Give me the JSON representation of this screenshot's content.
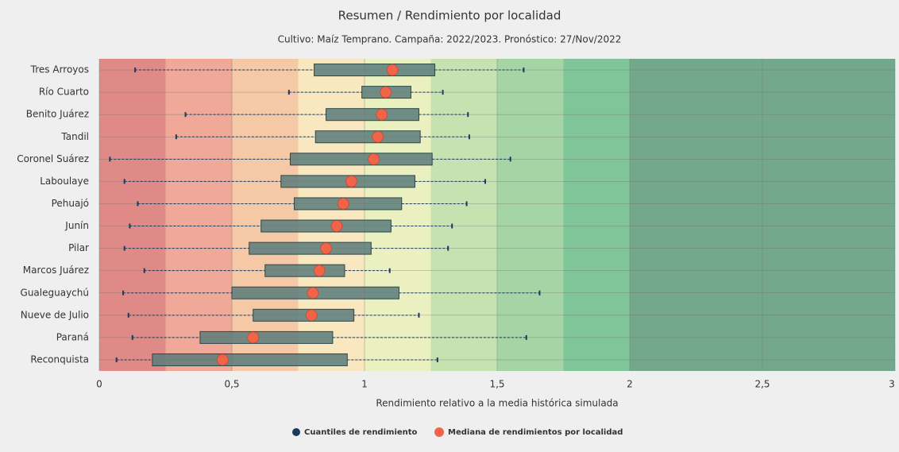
{
  "chart_data": {
    "type": "boxplot",
    "title": "Resumen / Rendimiento por localidad",
    "subtitle": "Cultivo: Maíz Temprano. Campaña: 2022/2023. Pronóstico: 27/Nov/2022",
    "x_label": "Rendimiento relativo a la media histórica simulada",
    "categories": [
      "Tres Arroyos",
      "Río Cuarto",
      "Benito Juárez",
      "Tandil",
      "Coronel Suárez",
      "Laboulaye",
      "Pehuajó",
      "Junín",
      "Pilar",
      "Marcos Juárez",
      "Gualeguaychú",
      "Nueve de Julio",
      "Paraná",
      "Reconquista"
    ],
    "series": [
      {
        "name": "Cuantiles de rendimiento",
        "color": "#1b3a5c",
        "box_color": "#5a7b7a",
        "min": [
          0.135,
          0.715,
          0.325,
          0.29,
          0.04,
          0.095,
          0.145,
          0.115,
          0.095,
          0.17,
          0.09,
          0.11,
          0.125,
          0.065
        ],
        "q1": [
          0.81,
          0.99,
          0.855,
          0.815,
          0.72,
          0.685,
          0.735,
          0.61,
          0.565,
          0.625,
          0.5,
          0.58,
          0.38,
          0.2
        ],
        "q3": [
          1.265,
          1.175,
          1.205,
          1.21,
          1.255,
          1.19,
          1.14,
          1.1,
          1.025,
          0.925,
          1.13,
          0.96,
          0.88,
          0.935
        ],
        "max": [
          1.6,
          1.295,
          1.39,
          1.395,
          1.55,
          1.455,
          1.385,
          1.33,
          1.315,
          1.095,
          1.66,
          1.205,
          1.61,
          1.275
        ]
      },
      {
        "name": "Mediana de rendimientos por localidad",
        "color": "#f0654a",
        "values": [
          1.105,
          1.08,
          1.065,
          1.05,
          1.035,
          0.95,
          0.92,
          0.895,
          0.855,
          0.83,
          0.805,
          0.8,
          0.58,
          0.465
        ]
      }
    ],
    "xlim": [
      0,
      3
    ],
    "xticks": [
      0,
      {
        "value": 0.5,
        "label": "0,5"
      },
      1,
      {
        "value": 1.5,
        "label": "1,5"
      },
      2,
      {
        "value": 2.5,
        "label": "2,5"
      },
      3
    ],
    "grid": true,
    "bands": [
      {
        "from": 0,
        "to": 0.25,
        "color": "#e08a87"
      },
      {
        "from": 0.25,
        "to": 0.5,
        "color": "#f0a898"
      },
      {
        "from": 0.5,
        "to": 0.75,
        "color": "#f5c9a5"
      },
      {
        "from": 0.75,
        "to": 1,
        "color": "#f8e7bf"
      },
      {
        "from": 1,
        "to": 1.25,
        "color": "#eaf0c0"
      },
      {
        "from": 1.25,
        "to": 1.5,
        "color": "#c5e2b0"
      },
      {
        "from": 1.5,
        "to": 1.75,
        "color": "#a5d5a5"
      },
      {
        "from": 1.75,
        "to": 2,
        "color": "#80c49a"
      },
      {
        "from": 2,
        "to": 3,
        "color": "#74a88c"
      }
    ],
    "legend": "bottom"
  }
}
